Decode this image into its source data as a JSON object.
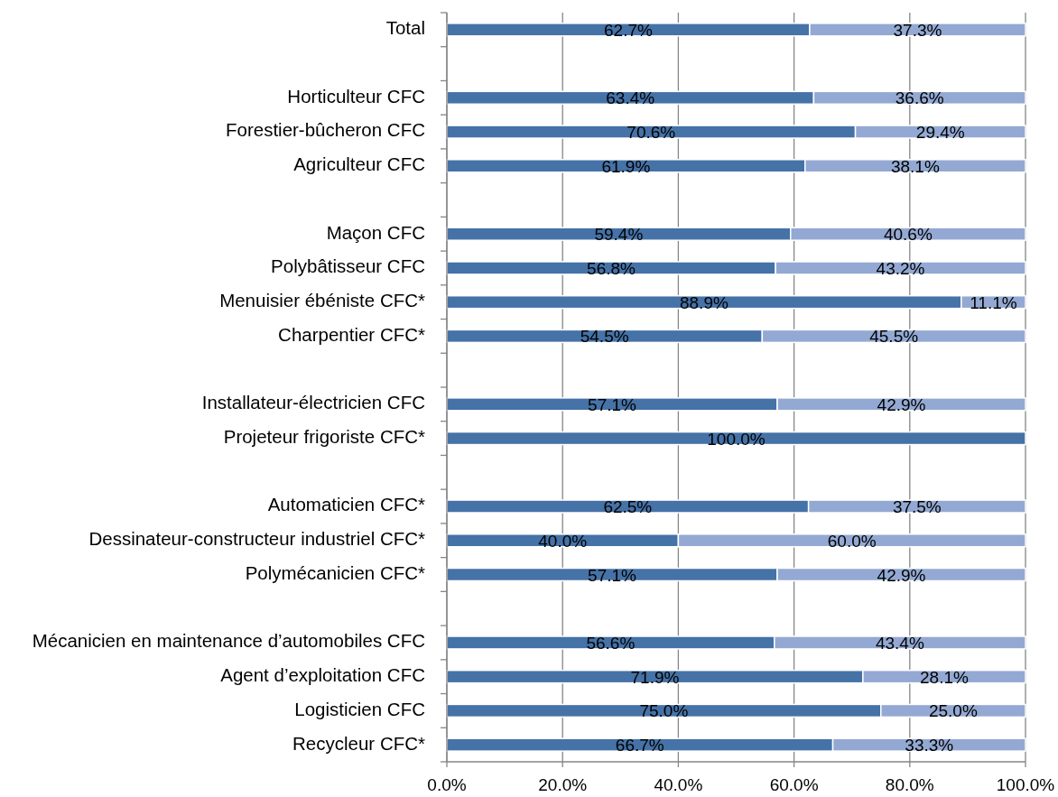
{
  "chart_data": {
    "type": "bar",
    "orientation": "horizontal",
    "stacked": true,
    "categories": [
      "Total",
      null,
      "Horticulteur CFC",
      "Forestier-bûcheron CFC",
      "Agriculteur CFC",
      null,
      "Maçon CFC",
      "Polybâtisseur CFC",
      "Menuisier ébéniste CFC*",
      "Charpentier CFC*",
      null,
      "Installateur-électricien CFC",
      "Projeteur frigoriste CFC*",
      null,
      "Automaticien CFC*",
      "Dessinateur-constructeur industriel CFC*",
      "Polymécanicien CFC*",
      null,
      "Mécanicien en maintenance d’automobiles CFC",
      "Agent d’exploitation CFC",
      "Logisticien CFC",
      "Recycleur CFC*"
    ],
    "series": [
      {
        "color": "#4572a7",
        "values": [
          62.7,
          null,
          63.4,
          70.6,
          61.9,
          null,
          59.4,
          56.8,
          88.9,
          54.5,
          null,
          57.1,
          100.0,
          null,
          62.5,
          40.0,
          57.1,
          null,
          56.6,
          71.9,
          75.0,
          66.7
        ],
        "value_labels": [
          "62.7%",
          null,
          "63.4%",
          "70.6%",
          "61.9%",
          null,
          "59.4%",
          "56.8%",
          "88.9%",
          "54.5%",
          null,
          "57.1%",
          "100.0%",
          null,
          "62.5%",
          "40.0%",
          "57.1%",
          null,
          "56.6%",
          "71.9%",
          "75.0%",
          "66.7%"
        ]
      },
      {
        "color": "#93a9d3",
        "values": [
          37.3,
          null,
          36.6,
          29.4,
          38.1,
          null,
          40.6,
          43.2,
          11.1,
          45.5,
          null,
          42.9,
          null,
          null,
          37.5,
          60.0,
          42.9,
          null,
          43.4,
          28.1,
          25.0,
          33.3
        ],
        "value_labels": [
          "37.3%",
          null,
          "36.6%",
          "29.4%",
          "38.1%",
          null,
          "40.6%",
          "43.2%",
          "11.1%",
          "45.5%",
          null,
          "42.9%",
          null,
          null,
          "37.5%",
          "60.0%",
          "42.9%",
          null,
          "43.4%",
          "28.1%",
          "25.0%",
          "33.3%"
        ]
      }
    ],
    "xlim": [
      0,
      100
    ],
    "xticks": [
      {
        "value": 0,
        "label": "0.0%"
      },
      {
        "value": 20,
        "label": "20.0%"
      },
      {
        "value": 40,
        "label": "40.0%"
      },
      {
        "value": 60,
        "label": "60.0%"
      },
      {
        "value": 80,
        "label": "80.0%"
      },
      {
        "value": 100,
        "label": "100.0%"
      }
    ],
    "grid": "x"
  }
}
